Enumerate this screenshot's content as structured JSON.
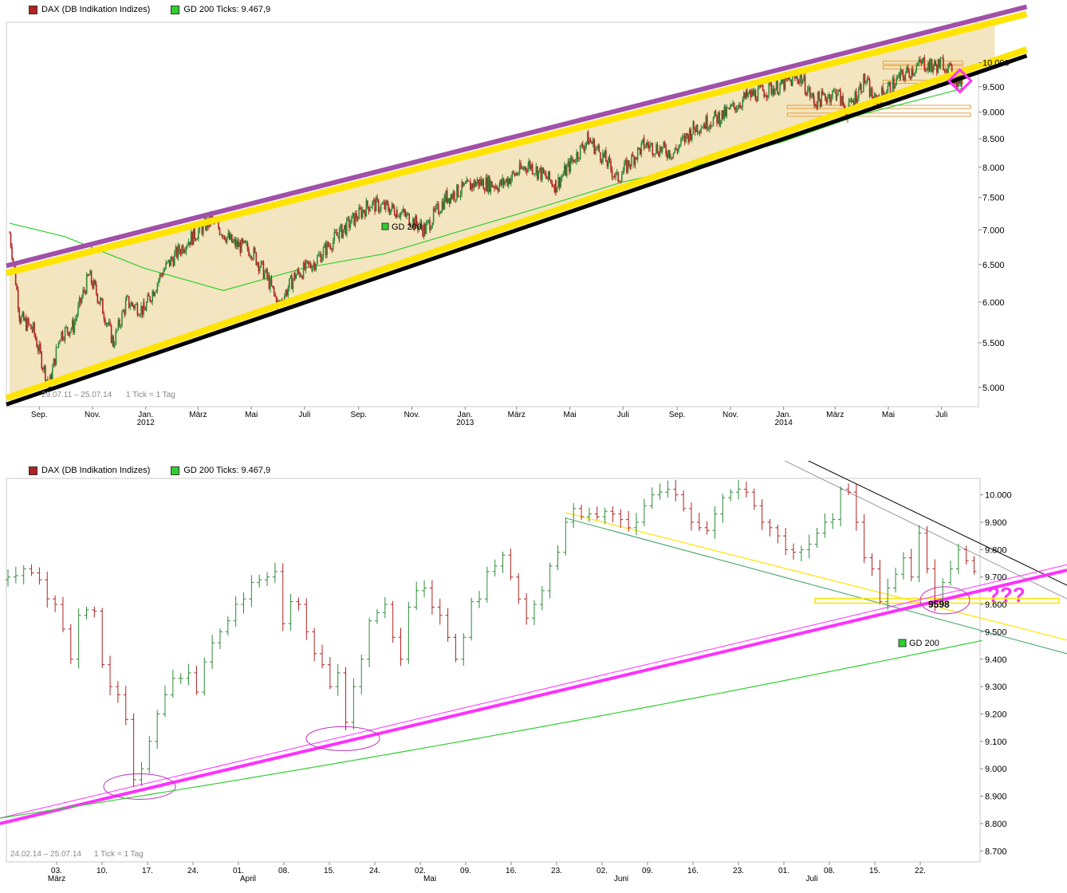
{
  "colors": {
    "up": "#2e8b3a",
    "down": "#b22222",
    "gd200": "#2fcf2f",
    "channel_fill": "#f2e2b8",
    "yellow": "#ffe400",
    "purple": "#a050a8",
    "magenta": "#ff30ff",
    "black": "#000000",
    "orange": "#e6a040"
  },
  "legend": {
    "dax_label": "DAX (DB Indikation Indizes)",
    "gd_label": "GD 200 Ticks: 9.467,9"
  },
  "chart_data": [
    {
      "type": "candlestick",
      "title": "DAX (DB Indikation Indizes)",
      "range_note": "29.07.11 – 25.07.14",
      "tick_note": "1 Tick = 1 Tag",
      "gd_label": "GD 200",
      "y_ticks": [
        5000,
        5500,
        6000,
        6500,
        7000,
        7500,
        8000,
        8500,
        9000,
        9500,
        10000
      ],
      "y_tick_labels": [
        "5.000",
        "5.500",
        "6.000",
        "6.500",
        "7.000",
        "7.500",
        "8.000",
        "8.500",
        "9.000",
        "9.500",
        "10.000"
      ],
      "x_month_labels": [
        "Sep.",
        "Nov.",
        "Jan.",
        "März",
        "Mai",
        "Juli",
        "Sep.",
        "Nov.",
        "Jan.",
        "März",
        "Mai",
        "Juli",
        "Sep.",
        "Nov.",
        "Jan.",
        "März",
        "Mai",
        "Juli"
      ],
      "x_year_labels": [
        "2012",
        "2013",
        "2014"
      ],
      "price_path": [
        [
          "2011-07-29",
          6950
        ],
        [
          "2011-08-10",
          5800
        ],
        [
          "2011-08-25",
          5650
        ],
        [
          "2011-09-12",
          5000
        ],
        [
          "2011-09-25",
          5600
        ],
        [
          "2011-10-10",
          5700
        ],
        [
          "2011-10-28",
          6350
        ],
        [
          "2011-11-10",
          6000
        ],
        [
          "2011-11-25",
          5500
        ],
        [
          "2011-12-10",
          6000
        ],
        [
          "2011-12-30",
          5900
        ],
        [
          "2012-01-20",
          6400
        ],
        [
          "2012-02-15",
          6800
        ],
        [
          "2012-03-16",
          7150
        ],
        [
          "2012-04-10",
          6800
        ],
        [
          "2012-05-01",
          6700
        ],
        [
          "2012-05-20",
          6300
        ],
        [
          "2012-06-01",
          5950
        ],
        [
          "2012-06-20",
          6350
        ],
        [
          "2012-07-10",
          6500
        ],
        [
          "2012-08-10",
          6950
        ],
        [
          "2012-09-14",
          7400
        ],
        [
          "2012-10-15",
          7300
        ],
        [
          "2012-11-16",
          7000
        ],
        [
          "2012-12-10",
          7500
        ],
        [
          "2013-01-15",
          7750
        ],
        [
          "2013-02-10",
          7700
        ],
        [
          "2013-03-15",
          8050
        ],
        [
          "2013-04-15",
          7700
        ],
        [
          "2013-05-22",
          8500
        ],
        [
          "2013-06-10",
          8150
        ],
        [
          "2013-06-24",
          7800
        ],
        [
          "2013-07-25",
          8400
        ],
        [
          "2013-08-28",
          8250
        ],
        [
          "2013-09-20",
          8700
        ],
        [
          "2013-10-25",
          8950
        ],
        [
          "2013-11-20",
          9300
        ],
        [
          "2013-12-31",
          9550
        ],
        [
          "2014-01-20",
          9700
        ],
        [
          "2014-02-05",
          9200
        ],
        [
          "2014-03-03",
          9400
        ],
        [
          "2014-03-14",
          9000
        ],
        [
          "2014-04-04",
          9650
        ],
        [
          "2014-04-15",
          9200
        ],
        [
          "2014-05-15",
          9700
        ],
        [
          "2014-06-10",
          10000
        ],
        [
          "2014-06-20",
          9900
        ],
        [
          "2014-07-03",
          10000
        ],
        [
          "2014-07-17",
          9650
        ],
        [
          "2014-07-25",
          9600
        ]
      ],
      "gd200_path": [
        [
          "2011-07-29",
          7100
        ],
        [
          "2011-09-30",
          6900
        ],
        [
          "2011-12-30",
          6450
        ],
        [
          "2012-03-30",
          6150
        ],
        [
          "2012-06-30",
          6450
        ],
        [
          "2012-09-30",
          6650
        ],
        [
          "2012-12-31",
          7000
        ],
        [
          "2013-03-30",
          7350
        ],
        [
          "2013-06-30",
          7750
        ],
        [
          "2013-09-30",
          8050
        ],
        [
          "2013-12-31",
          8450
        ],
        [
          "2014-03-30",
          8950
        ],
        [
          "2014-06-30",
          9350
        ],
        [
          "2014-07-25",
          9468
        ]
      ],
      "channel": {
        "upper": [
          [
            "2011-07-29",
            6450
          ],
          [
            "2014-08-31",
            11000
          ]
        ],
        "lower": [
          [
            "2011-07-29",
            4850
          ],
          [
            "2014-08-31",
            9950
          ]
        ]
      },
      "horizontal_levels": [
        10000,
        9900,
        9600,
        9100,
        8950
      ]
    },
    {
      "type": "ohlc",
      "title": "DAX (DB Indikation Indizes)",
      "range_note": "24.02.14 – 25.07.14",
      "tick_note": "1 Tick = 1 Tag",
      "gd_label": "GD 200",
      "y_ticks": [
        8700,
        8800,
        8900,
        9000,
        9100,
        9200,
        9300,
        9400,
        9500,
        9600,
        9700,
        9800,
        9900,
        10000
      ],
      "y_tick_labels": [
        "8.700",
        "8.800",
        "8.900",
        "9.000",
        "9.100",
        "9.200",
        "9.300",
        "9.400",
        "9.500",
        "9.600",
        "9.700",
        "9.800",
        "9.900",
        "10.000"
      ],
      "x_day_labels": [
        "03.",
        "10.",
        "17.",
        "24.",
        "01.",
        "08.",
        "15.",
        "24.",
        "02.",
        "09.",
        "16.",
        "23.",
        "02.",
        "09.",
        "16.",
        "23.",
        "01.",
        "08.",
        "15.",
        "22."
      ],
      "x_month_labels": [
        "März",
        "April",
        "Mai",
        "Juni",
        "Juli"
      ],
      "annotation_value": "9598",
      "annotation_marks": "???",
      "closes": [
        9700,
        9705,
        9730,
        9715,
        9690,
        9620,
        9600,
        9510,
        9400,
        9560,
        9580,
        9575,
        9380,
        9300,
        9270,
        9180,
        8960,
        9000,
        9100,
        9200,
        9270,
        9330,
        9330,
        9350,
        9280,
        9390,
        9460,
        9500,
        9540,
        9600,
        9620,
        9680,
        9690,
        9700,
        9720,
        9530,
        9610,
        9600,
        9500,
        9420,
        9380,
        9300,
        9350,
        9170,
        9300,
        9400,
        9540,
        9570,
        9600,
        9480,
        9400,
        9590,
        9650,
        9660,
        9590,
        9560,
        9480,
        9400,
        9480,
        9610,
        9620,
        9720,
        9740,
        9780,
        9700,
        9620,
        9550,
        9600,
        9650,
        9740,
        9790,
        9900,
        9950,
        9920,
        9930,
        9920,
        9940,
        9930,
        9910,
        9880,
        9900,
        9960,
        10000,
        10010,
        10020,
        10000,
        9950,
        9900,
        9880,
        9870,
        9930,
        9990,
        10010,
        10020,
        10010,
        9960,
        9900,
        9880,
        9850,
        9800,
        9790,
        9800,
        9820,
        9860,
        9900,
        9910,
        10020,
        10010,
        9900,
        9770,
        9730,
        9610,
        9660,
        9710,
        9770,
        9700,
        9860,
        9730,
        9610,
        9680,
        9730,
        9800,
        9760,
        9720
      ]
    }
  ]
}
